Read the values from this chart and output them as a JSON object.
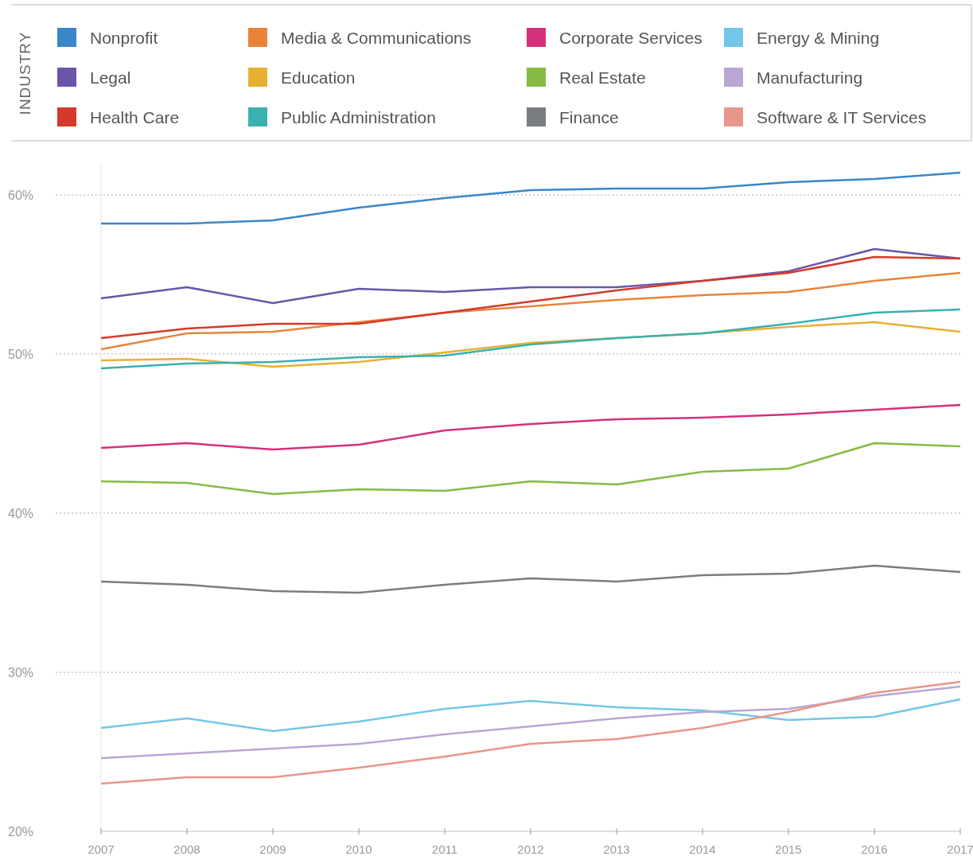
{
  "chart_data": {
    "type": "line",
    "legend_title": "INDUSTRY",
    "legend": "top",
    "grid": "y",
    "line_style": "solid",
    "marker": "none",
    "x": [
      2007,
      2008,
      2009,
      2010,
      2011,
      2012,
      2013,
      2014,
      2015,
      2016,
      2017
    ],
    "xlim": [
      2007,
      2017
    ],
    "xticks": [
      2007,
      2008,
      2009,
      2010,
      2011,
      2012,
      2013,
      2014,
      2015,
      2016,
      2017
    ],
    "ylim": [
      20,
      62
    ],
    "yticks": [
      {
        "value": 20,
        "label": "20%"
      },
      {
        "value": 30,
        "label": "30%"
      },
      {
        "value": 40,
        "label": "40%"
      },
      {
        "value": 50,
        "label": "50%"
      },
      {
        "value": 60,
        "label": "60%"
      }
    ],
    "series": [
      {
        "name": "Nonprofit",
        "color": "#3a87c8",
        "values": [
          58.2,
          58.2,
          58.4,
          59.2,
          59.8,
          60.3,
          60.4,
          60.4,
          60.8,
          61.0,
          61.4
        ]
      },
      {
        "name": "Media & Communications",
        "color": "#e8843a",
        "values": [
          50.3,
          51.3,
          51.4,
          52.0,
          52.6,
          53.0,
          53.4,
          53.7,
          53.9,
          54.6,
          55.1
        ]
      },
      {
        "name": "Corporate Services",
        "color": "#d6307a",
        "values": [
          44.1,
          44.4,
          44.0,
          44.3,
          45.2,
          45.6,
          45.9,
          46.0,
          46.2,
          46.5,
          46.8
        ]
      },
      {
        "name": "Energy & Mining",
        "color": "#74c6e8",
        "values": [
          26.5,
          27.1,
          26.3,
          26.9,
          27.7,
          28.2,
          27.8,
          27.6,
          27.0,
          27.2,
          28.3
        ]
      },
      {
        "name": "Legal",
        "color": "#6a55a8",
        "values": [
          53.5,
          54.2,
          53.2,
          54.1,
          53.9,
          54.2,
          54.2,
          54.6,
          55.2,
          56.6,
          56.0
        ]
      },
      {
        "name": "Education",
        "color": "#e6b033",
        "values": [
          49.6,
          49.7,
          49.2,
          49.5,
          50.1,
          50.7,
          51.0,
          51.3,
          51.7,
          52.0,
          51.4
        ]
      },
      {
        "name": "Real Estate",
        "color": "#86bb45",
        "values": [
          42.0,
          41.9,
          41.2,
          41.5,
          41.4,
          42.0,
          41.8,
          42.6,
          42.8,
          44.4,
          44.2
        ]
      },
      {
        "name": "Manufacturing",
        "color": "#b8a6d4",
        "values": [
          24.6,
          24.9,
          25.2,
          25.5,
          26.1,
          26.6,
          27.1,
          27.5,
          27.7,
          28.5,
          29.1
        ]
      },
      {
        "name": "Health Care",
        "color": "#d43a2c",
        "values": [
          51.0,
          51.6,
          51.9,
          51.9,
          52.6,
          53.3,
          54.0,
          54.6,
          55.1,
          56.1,
          56.0
        ]
      },
      {
        "name": "Public Administration",
        "color": "#3ab0b0",
        "values": [
          49.1,
          49.4,
          49.5,
          49.8,
          49.9,
          50.6,
          51.0,
          51.3,
          51.9,
          52.6,
          52.8
        ]
      },
      {
        "name": "Finance",
        "color": "#7a7d80",
        "values": [
          35.7,
          35.5,
          35.1,
          35.0,
          35.5,
          35.9,
          35.7,
          36.1,
          36.2,
          36.7,
          36.3
        ]
      },
      {
        "name": "Software & IT Services",
        "color": "#e8968a",
        "values": [
          23.0,
          23.4,
          23.4,
          24.0,
          24.7,
          25.5,
          25.8,
          26.5,
          27.5,
          28.7,
          29.4
        ]
      }
    ]
  }
}
